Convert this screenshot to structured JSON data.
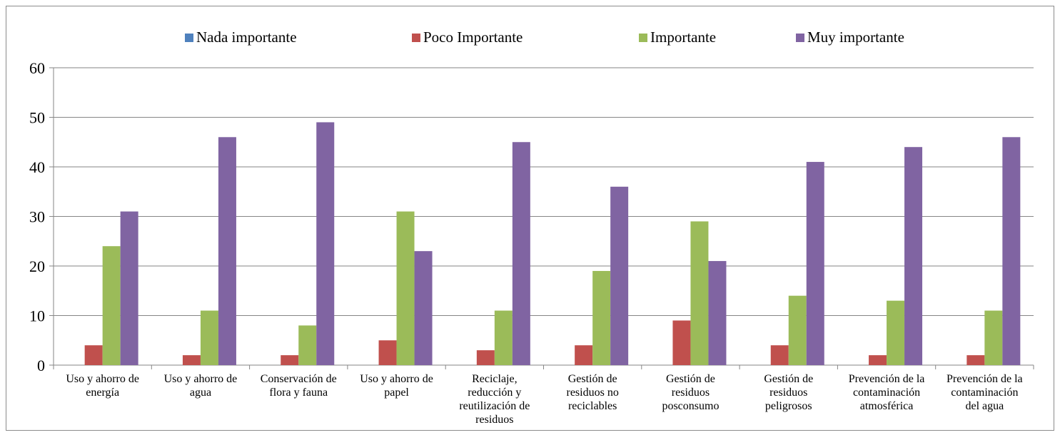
{
  "chart_data": {
    "type": "bar",
    "title": "",
    "xlabel": "",
    "ylabel": "",
    "ylim": [
      0,
      60
    ],
    "yticks": [
      0,
      10,
      20,
      30,
      40,
      50,
      60
    ],
    "grid": true,
    "legend_position": "top",
    "categories": [
      [
        "Uso y ahorro de",
        "energía"
      ],
      [
        "Uso y ahorro de",
        "agua"
      ],
      [
        "Conservación de",
        "flora y fauna"
      ],
      [
        "Uso y ahorro de",
        "papel"
      ],
      [
        "Reciclaje,",
        "reducción y",
        "reutilización de",
        "residuos"
      ],
      [
        "Gestión de",
        "residuos no",
        "reciclables"
      ],
      [
        "Gestión de",
        "residuos",
        "posconsumo"
      ],
      [
        "Gestión de",
        "residuos",
        "peligrosos"
      ],
      [
        "Prevención de la",
        "contaminación",
        "atmosférica"
      ],
      [
        "Prevención de la",
        "contaminación",
        "del agua"
      ]
    ],
    "series": [
      {
        "name": "Nada importante",
        "color": "#4f81bd",
        "values": [
          0,
          0,
          0,
          0,
          0,
          0,
          0,
          0,
          0,
          0
        ]
      },
      {
        "name": "Poco Importante",
        "color": "#c0504d",
        "values": [
          4,
          2,
          2,
          5,
          3,
          4,
          9,
          4,
          2,
          2
        ]
      },
      {
        "name": "Importante",
        "color": "#9bbb59",
        "values": [
          24,
          11,
          8,
          31,
          11,
          19,
          29,
          14,
          13,
          11
        ]
      },
      {
        "name": "Muy importante",
        "color": "#8064a2",
        "values": [
          31,
          46,
          49,
          23,
          45,
          36,
          21,
          41,
          44,
          46
        ]
      }
    ]
  }
}
